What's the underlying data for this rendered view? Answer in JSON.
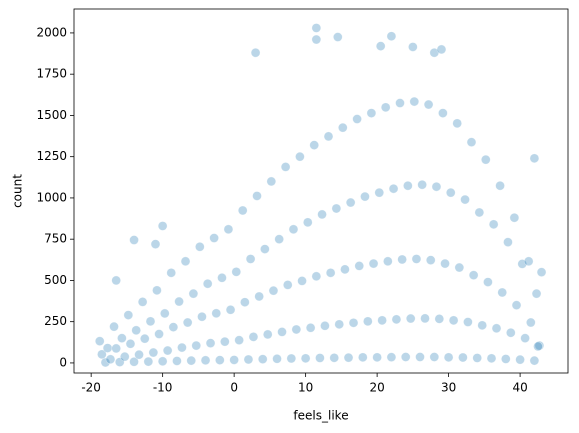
{
  "chart_data": {
    "type": "scatter",
    "x_label": "feels_like",
    "y_label": "count",
    "color": "#1f77b4",
    "opacity": 0.3,
    "grid": false,
    "xlim": [
      -22.4,
      46.7
    ],
    "ylim": [
      -61,
      2145
    ],
    "xticks": [
      -20,
      -10,
      0,
      10,
      20,
      30,
      40
    ],
    "yticks": [
      0,
      250,
      500,
      750,
      1000,
      1250,
      1500,
      1750,
      2000
    ],
    "x": [
      -18,
      -17.3,
      -18.5,
      -17.7,
      -18.8,
      -16,
      -15.3,
      -16.5,
      -15.7,
      -16.8,
      -14,
      -13.3,
      -14.5,
      -13.7,
      -14.8,
      -12,
      -11.3,
      -12.5,
      -11.7,
      -12.8,
      -10,
      -9.3,
      -10.5,
      -9.7,
      -10.8,
      -8,
      -7.3,
      -8.5,
      -7.7,
      -8.8,
      -6,
      -5.3,
      -6.5,
      -5.7,
      -6.8,
      -4,
      -3.3,
      -4.5,
      -3.7,
      -4.8,
      -2,
      -1.3,
      -2.5,
      -1.7,
      -2.8,
      0,
      0.7,
      -0.5,
      0.3,
      -0.8,
      2,
      2.7,
      1.5,
      2.3,
      1.2,
      4,
      4.7,
      3.5,
      4.3,
      3.2,
      6,
      6.7,
      5.5,
      6.3,
      5.2,
      8,
      8.7,
      7.5,
      8.3,
      7.2,
      10,
      10.7,
      9.5,
      10.3,
      9.2,
      12,
      12.7,
      11.5,
      12.3,
      11.2,
      14,
      14.7,
      13.5,
      14.3,
      13.2,
      16,
      16.7,
      15.5,
      16.3,
      15.2,
      18,
      18.7,
      17.5,
      18.3,
      17.2,
      20,
      20.7,
      19.5,
      20.3,
      19.2,
      22,
      22.7,
      21.5,
      22.3,
      21.2,
      24,
      24.7,
      23.5,
      24.3,
      23.2,
      26,
      26.7,
      25.5,
      26.3,
      25.2,
      28,
      28.7,
      27.5,
      28.3,
      27.2,
      30,
      30.7,
      29.5,
      30.3,
      29.2,
      32,
      32.7,
      31.5,
      32.3,
      31.2,
      34,
      34.7,
      33.5,
      34.3,
      33.2,
      36,
      36.7,
      35.5,
      36.3,
      35.2,
      38,
      38.7,
      37.5,
      38.3,
      37.2,
      40,
      40.7,
      39.5,
      40.3,
      39.2,
      42,
      42.7,
      41.5,
      42.3,
      41.2,
      3,
      11.5,
      11.5,
      14.5,
      20.5,
      22,
      25,
      28,
      29,
      -14,
      -11,
      -16.5,
      -10,
      42,
      43,
      42.5
    ],
    "values": [
      3,
      22,
      52,
      90,
      132,
      5,
      38,
      88,
      150,
      220,
      7,
      50,
      116,
      198,
      290,
      8,
      63,
      147,
      252,
      370,
      10,
      75,
      175,
      300,
      440,
      12,
      93,
      217,
      372,
      546,
      14,
      105,
      245,
      420,
      616,
      16,
      120,
      280,
      480,
      704,
      17,
      129,
      301,
      516,
      757,
      18,
      138,
      322,
      552,
      810,
      21,
      158,
      368,
      630,
      924,
      23,
      173,
      403,
      690,
      1012,
      25,
      188,
      438,
      750,
      1100,
      27,
      203,
      473,
      810,
      1188,
      28,
      213,
      497,
      852,
      1250,
      30,
      225,
      525,
      900,
      1320,
      31,
      234,
      546,
      936,
      1373,
      32,
      243,
      567,
      972,
      1426,
      34,
      252,
      588,
      1008,
      1478,
      34,
      258,
      602,
      1032,
      1514,
      35,
      264,
      616,
      1056,
      1549,
      36,
      269,
      627,
      1074,
      1575,
      36,
      270,
      630,
      1080,
      1584,
      36,
      267,
      623,
      1068,
      1566,
      34,
      258,
      602,
      1032,
      1514,
      33,
      248,
      578,
      990,
      1452,
      30,
      228,
      532,
      912,
      1338,
      28,
      210,
      490,
      840,
      1232,
      24,
      183,
      427,
      732,
      1074,
      20,
      150,
      350,
      600,
      880,
      14,
      105,
      245,
      420,
      616,
      1880,
      2030,
      1960,
      1975,
      1920,
      1980,
      1915,
      1880,
      1900,
      745,
      720,
      500,
      830,
      1240,
      550,
      100
    ]
  }
}
